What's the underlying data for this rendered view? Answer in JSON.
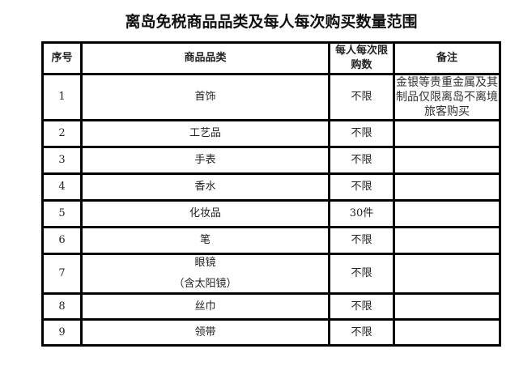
{
  "title": "离岛免税商品品类及每人每次购买数量范围",
  "headers": [
    "序号",
    "商品品类",
    "每人每次限购数",
    "备注"
  ],
  "rows": [
    {
      "no": "1",
      "item": "首饰",
      "item2": "",
      "limit": "不限",
      "note": "金银等贵重金属及其制品仅限离岛不离境旅客购买"
    },
    {
      "no": "2",
      "item": "工艺品",
      "item2": "",
      "limit": "不限",
      "note": ""
    },
    {
      "no": "3",
      "item": "手表",
      "item2": "",
      "limit": "不限",
      "note": ""
    },
    {
      "no": "4",
      "item": "香水",
      "item2": "",
      "limit": "不限",
      "note": ""
    },
    {
      "no": "5",
      "item": "化妆品",
      "item2": "",
      "limit": "30件",
      "note": ""
    },
    {
      "no": "6",
      "item": "笔",
      "item2": "",
      "limit": "不限",
      "note": ""
    },
    {
      "no": "7",
      "item": "眼镜",
      "item2": "（含太阳镜）",
      "limit": "不限",
      "note": ""
    },
    {
      "no": "8",
      "item": "丝巾",
      "item2": "",
      "limit": "不限",
      "note": ""
    },
    {
      "no": "9",
      "item": "领带",
      "item2": "",
      "limit": "不限",
      "note": ""
    }
  ]
}
